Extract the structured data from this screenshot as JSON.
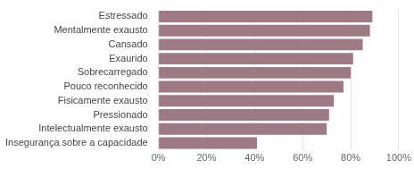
{
  "chart_data": {
    "type": "bar",
    "orientation": "horizontal",
    "categories": [
      "Estressado",
      "Mentalmente exausto",
      "Cansado",
      "Exaurido",
      "Sobrecarregado",
      "Pouco reconhecido",
      "Fisicamente exausto",
      "Pressionado",
      "Intelectualmente exausto",
      "Insegurança sobre a capacidade"
    ],
    "values": [
      89,
      88,
      85,
      81,
      80,
      77,
      73,
      71,
      70,
      41
    ],
    "color": "#9e7a84",
    "xlim": [
      0,
      100
    ],
    "xticks": [
      {
        "value": 0,
        "label": "0%"
      },
      {
        "value": 20,
        "label": "20%"
      },
      {
        "value": 40,
        "label": "40%"
      },
      {
        "value": 60,
        "label": "60%"
      },
      {
        "value": 80,
        "label": "80%"
      },
      {
        "value": 100,
        "label": "100%"
      }
    ],
    "grid": true
  }
}
